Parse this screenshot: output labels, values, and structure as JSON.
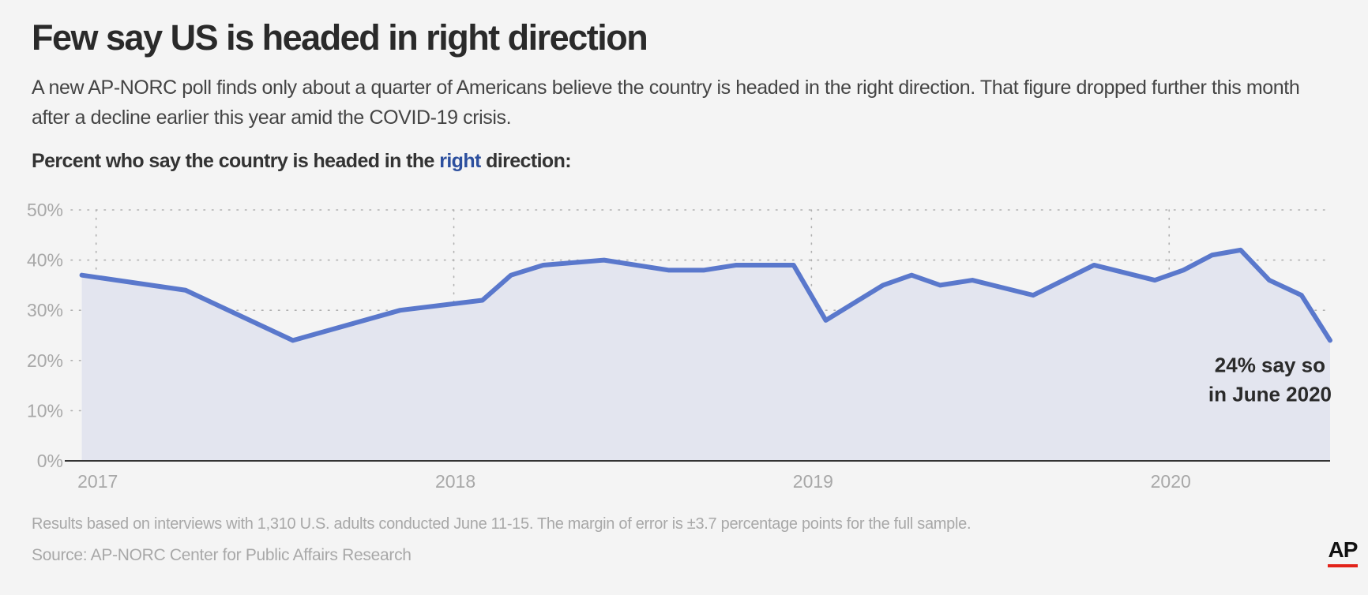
{
  "title": "Few say US is headed in right direction",
  "subtitle": "A new AP-NORC poll finds only about a quarter of Americans believe the country is headed in the right direction. That figure dropped further this month after a decline earlier this year amid the COVID-19 crisis.",
  "chart_label": {
    "before": "Percent who say the country is headed in the ",
    "highlight": "right",
    "after": " direction:"
  },
  "colors": {
    "line": "#5a78cc",
    "area": "#e3e5ef",
    "highlight": "#2c4f9e",
    "axis": "#333333",
    "grid": "#b0b0b0",
    "tick_text": "#a8a8a8"
  },
  "chart_data": {
    "type": "area",
    "title": "Percent who say the country is headed in the right direction:",
    "xlabel": "",
    "ylabel": "",
    "x_range": [
      2016.93,
      2020.45
    ],
    "ylim": [
      0,
      50
    ],
    "y_ticks": [
      0,
      10,
      20,
      30,
      40,
      50
    ],
    "y_tick_labels": [
      "0%",
      "10%",
      "20%",
      "30%",
      "40%",
      "50%"
    ],
    "x_ticks": [
      2017,
      2018,
      2019,
      2020
    ],
    "x_tick_labels": [
      "2017",
      "2018",
      "2019",
      "2020"
    ],
    "grid": true,
    "series": [
      {
        "name": "Right direction",
        "x": [
          2016.96,
          2017.25,
          2017.55,
          2017.85,
          2018.08,
          2018.16,
          2018.25,
          2018.42,
          2018.6,
          2018.7,
          2018.79,
          2018.95,
          2019.04,
          2019.2,
          2019.28,
          2019.36,
          2019.45,
          2019.62,
          2019.79,
          2019.96,
          2020.04,
          2020.12,
          2020.2,
          2020.28,
          2020.37,
          2020.45
        ],
        "y": [
          37,
          34,
          24,
          30,
          32,
          37,
          39,
          40,
          38,
          38,
          39,
          39,
          28,
          35,
          37,
          35,
          36,
          33,
          39,
          36,
          38,
          41,
          42,
          36,
          33,
          24
        ]
      }
    ],
    "annotation": {
      "line1": "24% say so",
      "line2": "in June 2020",
      "x": 2020.45,
      "y": 24
    }
  },
  "footnote": "Results based on interviews with 1,310 U.S. adults conducted June 11-15. The margin of error is ±3.7 percentage points for the full sample.",
  "source": "Source: AP-NORC Center for Public Affairs Research",
  "logo_text": "AP"
}
